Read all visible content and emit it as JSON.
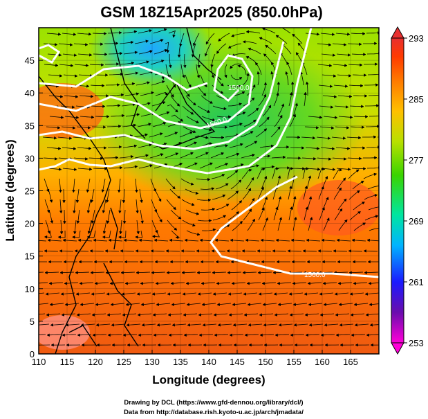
{
  "title": "GSM 18Z15Apr2025 (850.0hPa)",
  "x_axis": {
    "label": "Longitude (degrees)",
    "range": [
      110,
      170
    ],
    "ticks": [
      "110",
      "115",
      "120",
      "125",
      "130",
      "135",
      "140",
      "145",
      "150",
      "155",
      "160",
      "165"
    ]
  },
  "y_axis": {
    "label": "Latitude  (degrees)",
    "range": [
      0,
      50
    ],
    "ticks": [
      "0",
      "5",
      "10",
      "15",
      "20",
      "25",
      "30",
      "35",
      "40",
      "45"
    ]
  },
  "colorbar": {
    "range": [
      253,
      293
    ],
    "ticks": [
      "293",
      "285",
      "277",
      "269",
      "261",
      "253"
    ],
    "colors": [
      "#ff00d8",
      "#6a0dad",
      "#1a1aff",
      "#00b4ff",
      "#00e6a0",
      "#3ad400",
      "#b8e000",
      "#ffc000",
      "#ff7a00",
      "#ff3a00",
      "#e83030"
    ]
  },
  "contour_labels": [
    "1560.0",
    "1560.0",
    "1500.0"
  ],
  "credits": [
    "Drawing by DCL (https://www.gfd-dennou.org/library/dcl/)",
    "Data from http://database.rish.kyoto-u.ac.jp/arch/jmadata/"
  ]
}
